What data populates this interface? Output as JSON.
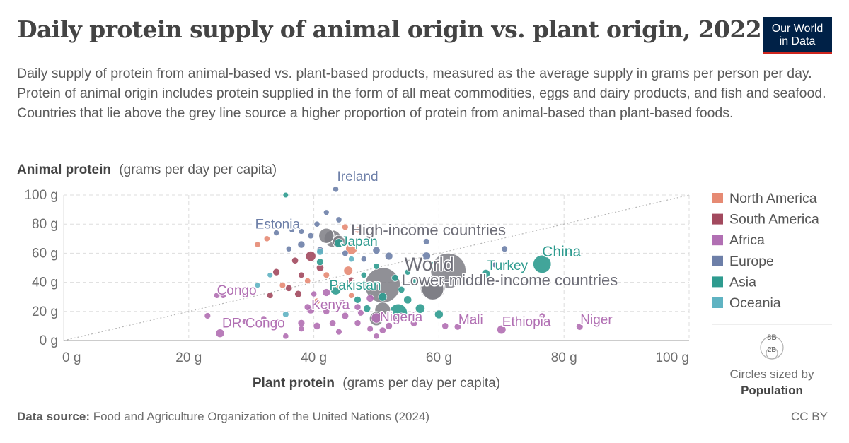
{
  "title": "Daily protein supply of animal origin vs. plant origin, 2022",
  "subtitle": "Daily supply of protein from animal-based vs. plant-based products, measured as the average supply in grams per person per day. Protein of animal origin includes protein supplied in the form of all meat commodities, eggs and dairy products, and fish and seafood. Countries that lie above the grey line source a higher proportion of protein from animal-based than plant-based foods.",
  "logo": {
    "line1": "Our World",
    "line2": "in Data"
  },
  "footer": {
    "source_label": "Data source:",
    "source_text": "Food and Agriculture Organization of the United Nations (2024)",
    "license": "CC BY"
  },
  "size_legend": {
    "big": "8B",
    "small": "2B",
    "caption_line1": "Circles sized by",
    "caption_line2": "Population"
  },
  "chart_data": {
    "type": "scatter",
    "ylabel_bold": "Animal protein",
    "ylabel_rest": "(grams per day per capita)",
    "xlabel_bold": "Plant protein",
    "xlabel_rest": "(grams per day per capita)",
    "xlim": [
      0,
      100
    ],
    "ylim": [
      0,
      100
    ],
    "x_ticks": [
      "0 g",
      "20 g",
      "40 g",
      "60 g",
      "80 g",
      "100 g"
    ],
    "y_ticks": [
      "0 g",
      "20 g",
      "40 g",
      "60 g",
      "80 g",
      "100 g"
    ],
    "grid": true,
    "reference_line": "y = x",
    "legend_position": "right",
    "regions": [
      {
        "name": "North America",
        "color": "#e68a73"
      },
      {
        "name": "South America",
        "color": "#a2495e"
      },
      {
        "name": "Africa",
        "color": "#b16fb3"
      },
      {
        "name": "Europe",
        "color": "#6d7fa8"
      },
      {
        "name": "Asia",
        "color": "#2e9b8f"
      },
      {
        "name": "Oceania",
        "color": "#5fb3c2"
      }
    ],
    "labeled_points": [
      {
        "label": "Ireland",
        "x": 43.5,
        "y": 104,
        "region": "Europe",
        "pop": 0.005
      },
      {
        "label": "Estonia",
        "x": 36.5,
        "y": 76,
        "region": "Europe",
        "pop": 0.0013
      },
      {
        "label": "High-income countries",
        "x": 43,
        "y": 70,
        "region": "aggregate",
        "pop": 1.25
      },
      {
        "label": "Japan",
        "x": 44,
        "y": 67,
        "region": "Asia",
        "pop": 0.125
      },
      {
        "label": "China",
        "x": 76.5,
        "y": 52.5,
        "region": "Asia",
        "pop": 1.42
      },
      {
        "label": "Turkey",
        "x": 67.5,
        "y": 46,
        "region": "Asia",
        "pop": 0.085
      },
      {
        "label": "World",
        "x": 61.5,
        "y": 48,
        "region": "aggregate",
        "pop": 7.95
      },
      {
        "label": "Pakistan",
        "x": 43.5,
        "y": 35,
        "region": "Asia",
        "pop": 0.235
      },
      {
        "label": "Congo",
        "x": 24.5,
        "y": 31,
        "region": "Africa",
        "pop": 0.006
      },
      {
        "label": "Lower-middle-income countries",
        "x": 59,
        "y": 36,
        "region": "aggregate",
        "pop": 3.35
      },
      {
        "label": "Kenya",
        "x": 39.5,
        "y": 21,
        "region": "Africa",
        "pop": 0.054
      },
      {
        "label": "Nigeria",
        "x": 50,
        "y": 15.5,
        "region": "Africa",
        "pop": 0.218
      },
      {
        "label": "DR Congo",
        "x": 25,
        "y": 5,
        "region": "Africa",
        "pop": 0.099
      },
      {
        "label": "Mali",
        "x": 63,
        "y": 9.5,
        "region": "Africa",
        "pop": 0.022
      },
      {
        "label": "Ethiopia",
        "x": 70,
        "y": 7.5,
        "region": "Africa",
        "pop": 0.123
      },
      {
        "label": "Niger",
        "x": 82.5,
        "y": 9.5,
        "region": "Africa",
        "pop": 0.026
      }
    ],
    "other_points": [
      {
        "x": 51,
        "y": 38,
        "region": "aggregate",
        "pop": 7.95
      },
      {
        "x": 51,
        "y": 21,
        "region": "aggregate",
        "pop": 1.0
      },
      {
        "x": 53.5,
        "y": 19,
        "region": "Asia",
        "pop": 1.42
      },
      {
        "x": 59,
        "y": 35.5,
        "region": "aggregate",
        "pop": 2.5
      },
      {
        "x": 50,
        "y": 15,
        "region": "aggregate",
        "pop": 0.7
      },
      {
        "x": 42,
        "y": 72,
        "region": "aggregate",
        "pop": 0.9
      },
      {
        "x": 44,
        "y": 68,
        "region": "aggregate",
        "pop": 0.5
      },
      {
        "x": 35.5,
        "y": 100,
        "region": "Asia",
        "pop": 0.001
      },
      {
        "x": 44,
        "y": 83,
        "region": "Europe",
        "pop": 0.005
      },
      {
        "x": 42,
        "y": 88,
        "region": "Europe",
        "pop": 0.002
      },
      {
        "x": 40.5,
        "y": 80,
        "region": "Europe",
        "pop": 0.005
      },
      {
        "x": 38,
        "y": 75,
        "region": "Europe",
        "pop": 0.002
      },
      {
        "x": 34,
        "y": 74,
        "region": "Europe",
        "pop": 0.003
      },
      {
        "x": 45,
        "y": 78,
        "region": "North America",
        "pop": 0.01
      },
      {
        "x": 47,
        "y": 76,
        "region": "North America",
        "pop": 0.01
      },
      {
        "x": 31,
        "y": 66,
        "region": "North America",
        "pop": 0.005
      },
      {
        "x": 32.5,
        "y": 70,
        "region": "North America",
        "pop": 0.004
      },
      {
        "x": 36,
        "y": 63,
        "region": "Europe",
        "pop": 0.004
      },
      {
        "x": 38,
        "y": 66,
        "region": "Europe",
        "pop": 0.04
      },
      {
        "x": 39.5,
        "y": 72,
        "region": "Europe",
        "pop": 0.008
      },
      {
        "x": 41,
        "y": 62,
        "region": "Europe",
        "pop": 0.03
      },
      {
        "x": 45,
        "y": 60,
        "region": "Europe",
        "pop": 0.01
      },
      {
        "x": 46,
        "y": 63,
        "region": "North America",
        "pop": 0.33
      },
      {
        "x": 48,
        "y": 56,
        "region": "Europe",
        "pop": 0.005
      },
      {
        "x": 50,
        "y": 62,
        "region": "Europe",
        "pop": 0.04
      },
      {
        "x": 52,
        "y": 58,
        "region": "Europe",
        "pop": 0.06
      },
      {
        "x": 58,
        "y": 58,
        "region": "Europe",
        "pop": 0.08
      },
      {
        "x": 58,
        "y": 68,
        "region": "Europe",
        "pop": 0.01
      },
      {
        "x": 70.5,
        "y": 63,
        "region": "Europe",
        "pop": 0.01
      },
      {
        "x": 69,
        "y": 52,
        "region": "Europe",
        "pop": 0.005
      },
      {
        "x": 68.5,
        "y": 40,
        "region": "Europe",
        "pop": 0.005
      },
      {
        "x": 39.5,
        "y": 58,
        "region": "South America",
        "pop": 0.21
      },
      {
        "x": 41,
        "y": 50,
        "region": "South America",
        "pop": 0.046
      },
      {
        "x": 37,
        "y": 55,
        "region": "South America",
        "pop": 0.019
      },
      {
        "x": 38,
        "y": 45,
        "region": "South America",
        "pop": 0.008
      },
      {
        "x": 34,
        "y": 47,
        "region": "South America",
        "pop": 0.03
      },
      {
        "x": 36,
        "y": 36,
        "region": "South America",
        "pop": 0.02
      },
      {
        "x": 37.5,
        "y": 32,
        "region": "South America",
        "pop": 0.03
      },
      {
        "x": 33,
        "y": 31,
        "region": "South America",
        "pop": 0.011
      },
      {
        "x": 46,
        "y": 41,
        "region": "South America",
        "pop": 0.05
      },
      {
        "x": 45.5,
        "y": 48,
        "region": "North America",
        "pop": 0.13
      },
      {
        "x": 42,
        "y": 45,
        "region": "North America",
        "pop": 0.01
      },
      {
        "x": 39,
        "y": 41,
        "region": "North America",
        "pop": 0.006
      },
      {
        "x": 44,
        "y": 38,
        "region": "North America",
        "pop": 0.017
      },
      {
        "x": 35,
        "y": 38,
        "region": "North America",
        "pop": 0.01
      },
      {
        "x": 40.5,
        "y": 27,
        "region": "North America",
        "pop": 0.011
      },
      {
        "x": 46,
        "y": 31,
        "region": "North America",
        "pop": 0.005
      },
      {
        "x": 33,
        "y": 45,
        "region": "Oceania",
        "pop": 0.001
      },
      {
        "x": 31,
        "y": 38,
        "region": "Oceania",
        "pop": 0.001
      },
      {
        "x": 41,
        "y": 61,
        "region": "Oceania",
        "pop": 0.026
      },
      {
        "x": 46,
        "y": 56,
        "region": "Oceania",
        "pop": 0.005
      },
      {
        "x": 35.5,
        "y": 18,
        "region": "Oceania",
        "pop": 0.01
      },
      {
        "x": 55,
        "y": 47,
        "region": "Asia",
        "pop": 0.004
      },
      {
        "x": 50,
        "y": 51,
        "region": "Asia",
        "pop": 0.01
      },
      {
        "x": 48,
        "y": 45,
        "region": "Asia",
        "pop": 0.005
      },
      {
        "x": 53,
        "y": 43,
        "region": "Asia",
        "pop": 0.03
      },
      {
        "x": 56,
        "y": 40,
        "region": "Asia",
        "pop": 0.05
      },
      {
        "x": 51,
        "y": 30,
        "region": "Asia",
        "pop": 0.1
      },
      {
        "x": 55,
        "y": 28,
        "region": "Asia",
        "pop": 0.07
      },
      {
        "x": 47,
        "y": 28,
        "region": "Asia",
        "pop": 0.03
      },
      {
        "x": 57,
        "y": 22,
        "region": "Asia",
        "pop": 0.16
      },
      {
        "x": 60,
        "y": 18,
        "region": "Asia",
        "pop": 0.1
      },
      {
        "x": 48.5,
        "y": 22,
        "region": "Asia",
        "pop": 0.04
      },
      {
        "x": 59,
        "y": 52,
        "region": "Asia",
        "pop": 0.01
      },
      {
        "x": 54,
        "y": 35,
        "region": "Asia",
        "pop": 0.02
      },
      {
        "x": 41,
        "y": 54,
        "region": "Asia",
        "pop": 0.03
      },
      {
        "x": 49,
        "y": 29,
        "region": "Africa",
        "pop": 0.046
      },
      {
        "x": 42,
        "y": 33,
        "region": "Africa",
        "pop": 0.06
      },
      {
        "x": 47,
        "y": 23,
        "region": "Africa",
        "pop": 0.02
      },
      {
        "x": 45,
        "y": 17,
        "region": "Africa",
        "pop": 0.03
      },
      {
        "x": 43,
        "y": 12,
        "region": "Africa",
        "pop": 0.02
      },
      {
        "x": 40.5,
        "y": 10,
        "region": "Africa",
        "pop": 0.04
      },
      {
        "x": 47,
        "y": 12,
        "region": "Africa",
        "pop": 0.015
      },
      {
        "x": 52,
        "y": 10,
        "region": "Africa",
        "pop": 0.03
      },
      {
        "x": 56,
        "y": 12,
        "region": "Africa",
        "pop": 0.03
      },
      {
        "x": 61,
        "y": 10,
        "region": "Africa",
        "pop": 0.02
      },
      {
        "x": 51,
        "y": 7,
        "region": "Africa",
        "pop": 0.02
      },
      {
        "x": 49,
        "y": 8,
        "region": "Africa",
        "pop": 0.01
      },
      {
        "x": 44,
        "y": 6,
        "region": "Africa",
        "pop": 0.01
      },
      {
        "x": 38,
        "y": 12,
        "region": "Africa",
        "pop": 0.03
      },
      {
        "x": 34,
        "y": 13,
        "region": "Africa",
        "pop": 0.005
      },
      {
        "x": 32,
        "y": 15,
        "region": "Africa",
        "pop": 0.005
      },
      {
        "x": 29,
        "y": 13,
        "region": "Africa",
        "pop": 0.004
      },
      {
        "x": 23,
        "y": 17,
        "region": "Africa",
        "pop": 0.01
      },
      {
        "x": 25.5,
        "y": 31,
        "region": "Africa",
        "pop": 0.005
      },
      {
        "x": 35.5,
        "y": 3,
        "region": "Africa",
        "pop": 0.005
      },
      {
        "x": 39,
        "y": 23,
        "region": "Africa",
        "pop": 0.02
      },
      {
        "x": 42,
        "y": 20,
        "region": "Africa",
        "pop": 0.02
      },
      {
        "x": 44.5,
        "y": 26,
        "region": "Africa",
        "pop": 0.01
      },
      {
        "x": 47.5,
        "y": 19,
        "region": "Africa",
        "pop": 0.01
      },
      {
        "x": 53,
        "y": 14,
        "region": "Africa",
        "pop": 0.01
      },
      {
        "x": 54,
        "y": 17,
        "region": "Africa",
        "pop": 0.005
      },
      {
        "x": 76.5,
        "y": 17,
        "region": "Africa",
        "pop": 0.004
      },
      {
        "x": 40,
        "y": 32,
        "region": "Africa",
        "pop": 0.005
      },
      {
        "x": 50,
        "y": 3,
        "region": "Africa",
        "pop": 0.004
      },
      {
        "x": 38,
        "y": 8,
        "region": "Africa",
        "pop": 0.005
      }
    ]
  }
}
